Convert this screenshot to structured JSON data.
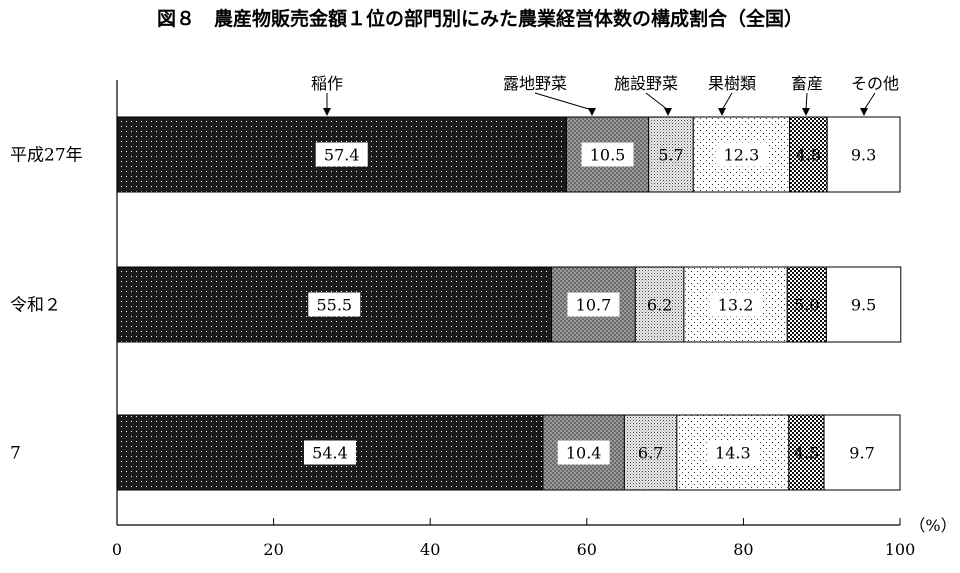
{
  "chart_data": {
    "type": "bar",
    "orientation": "horizontal",
    "stacked": true,
    "title": "図８　農産物販売金額１位の部門別にみた農業経営体数の構成割合（全国）",
    "categories": [
      "平成27年",
      "令和２",
      "7"
    ],
    "series": [
      {
        "name": "稲作",
        "values": [
          57.4,
          55.5,
          54.4
        ],
        "labels": [
          "57.4",
          "55.5",
          "54.4"
        ]
      },
      {
        "name": "露地野菜",
        "values": [
          10.5,
          10.7,
          10.4
        ],
        "labels": [
          "10.5",
          "10.7",
          "10.4"
        ]
      },
      {
        "name": "施設野菜",
        "values": [
          5.7,
          6.2,
          6.7
        ],
        "labels": [
          "5.7",
          "6.2",
          "6.7"
        ]
      },
      {
        "name": "果樹類",
        "values": [
          12.3,
          13.2,
          14.3
        ],
        "labels": [
          "12.3",
          "13.2",
          "14.3"
        ]
      },
      {
        "name": "畜産",
        "values": [
          4.8,
          5.0,
          4.5
        ],
        "labels": [
          "4.8",
          "5.0",
          "4.5"
        ]
      },
      {
        "name": "その他",
        "values": [
          9.3,
          9.5,
          9.7
        ],
        "labels": [
          "9.3",
          "9.5",
          "9.7"
        ]
      }
    ],
    "xlim": [
      0,
      100
    ],
    "xticks": [
      "0",
      "20",
      "40",
      "60",
      "80",
      "100"
    ],
    "unit_label": "（%）",
    "grid": false,
    "legend": "top",
    "colors": {
      "稲作": "#1e1e1e",
      "露地野菜": "#8a8a8a",
      "施設野菜": "#d0d0d0",
      "果樹類": "#ffffff",
      "畜産": "#3a3a3a",
      "その他": "#ffffff"
    }
  }
}
